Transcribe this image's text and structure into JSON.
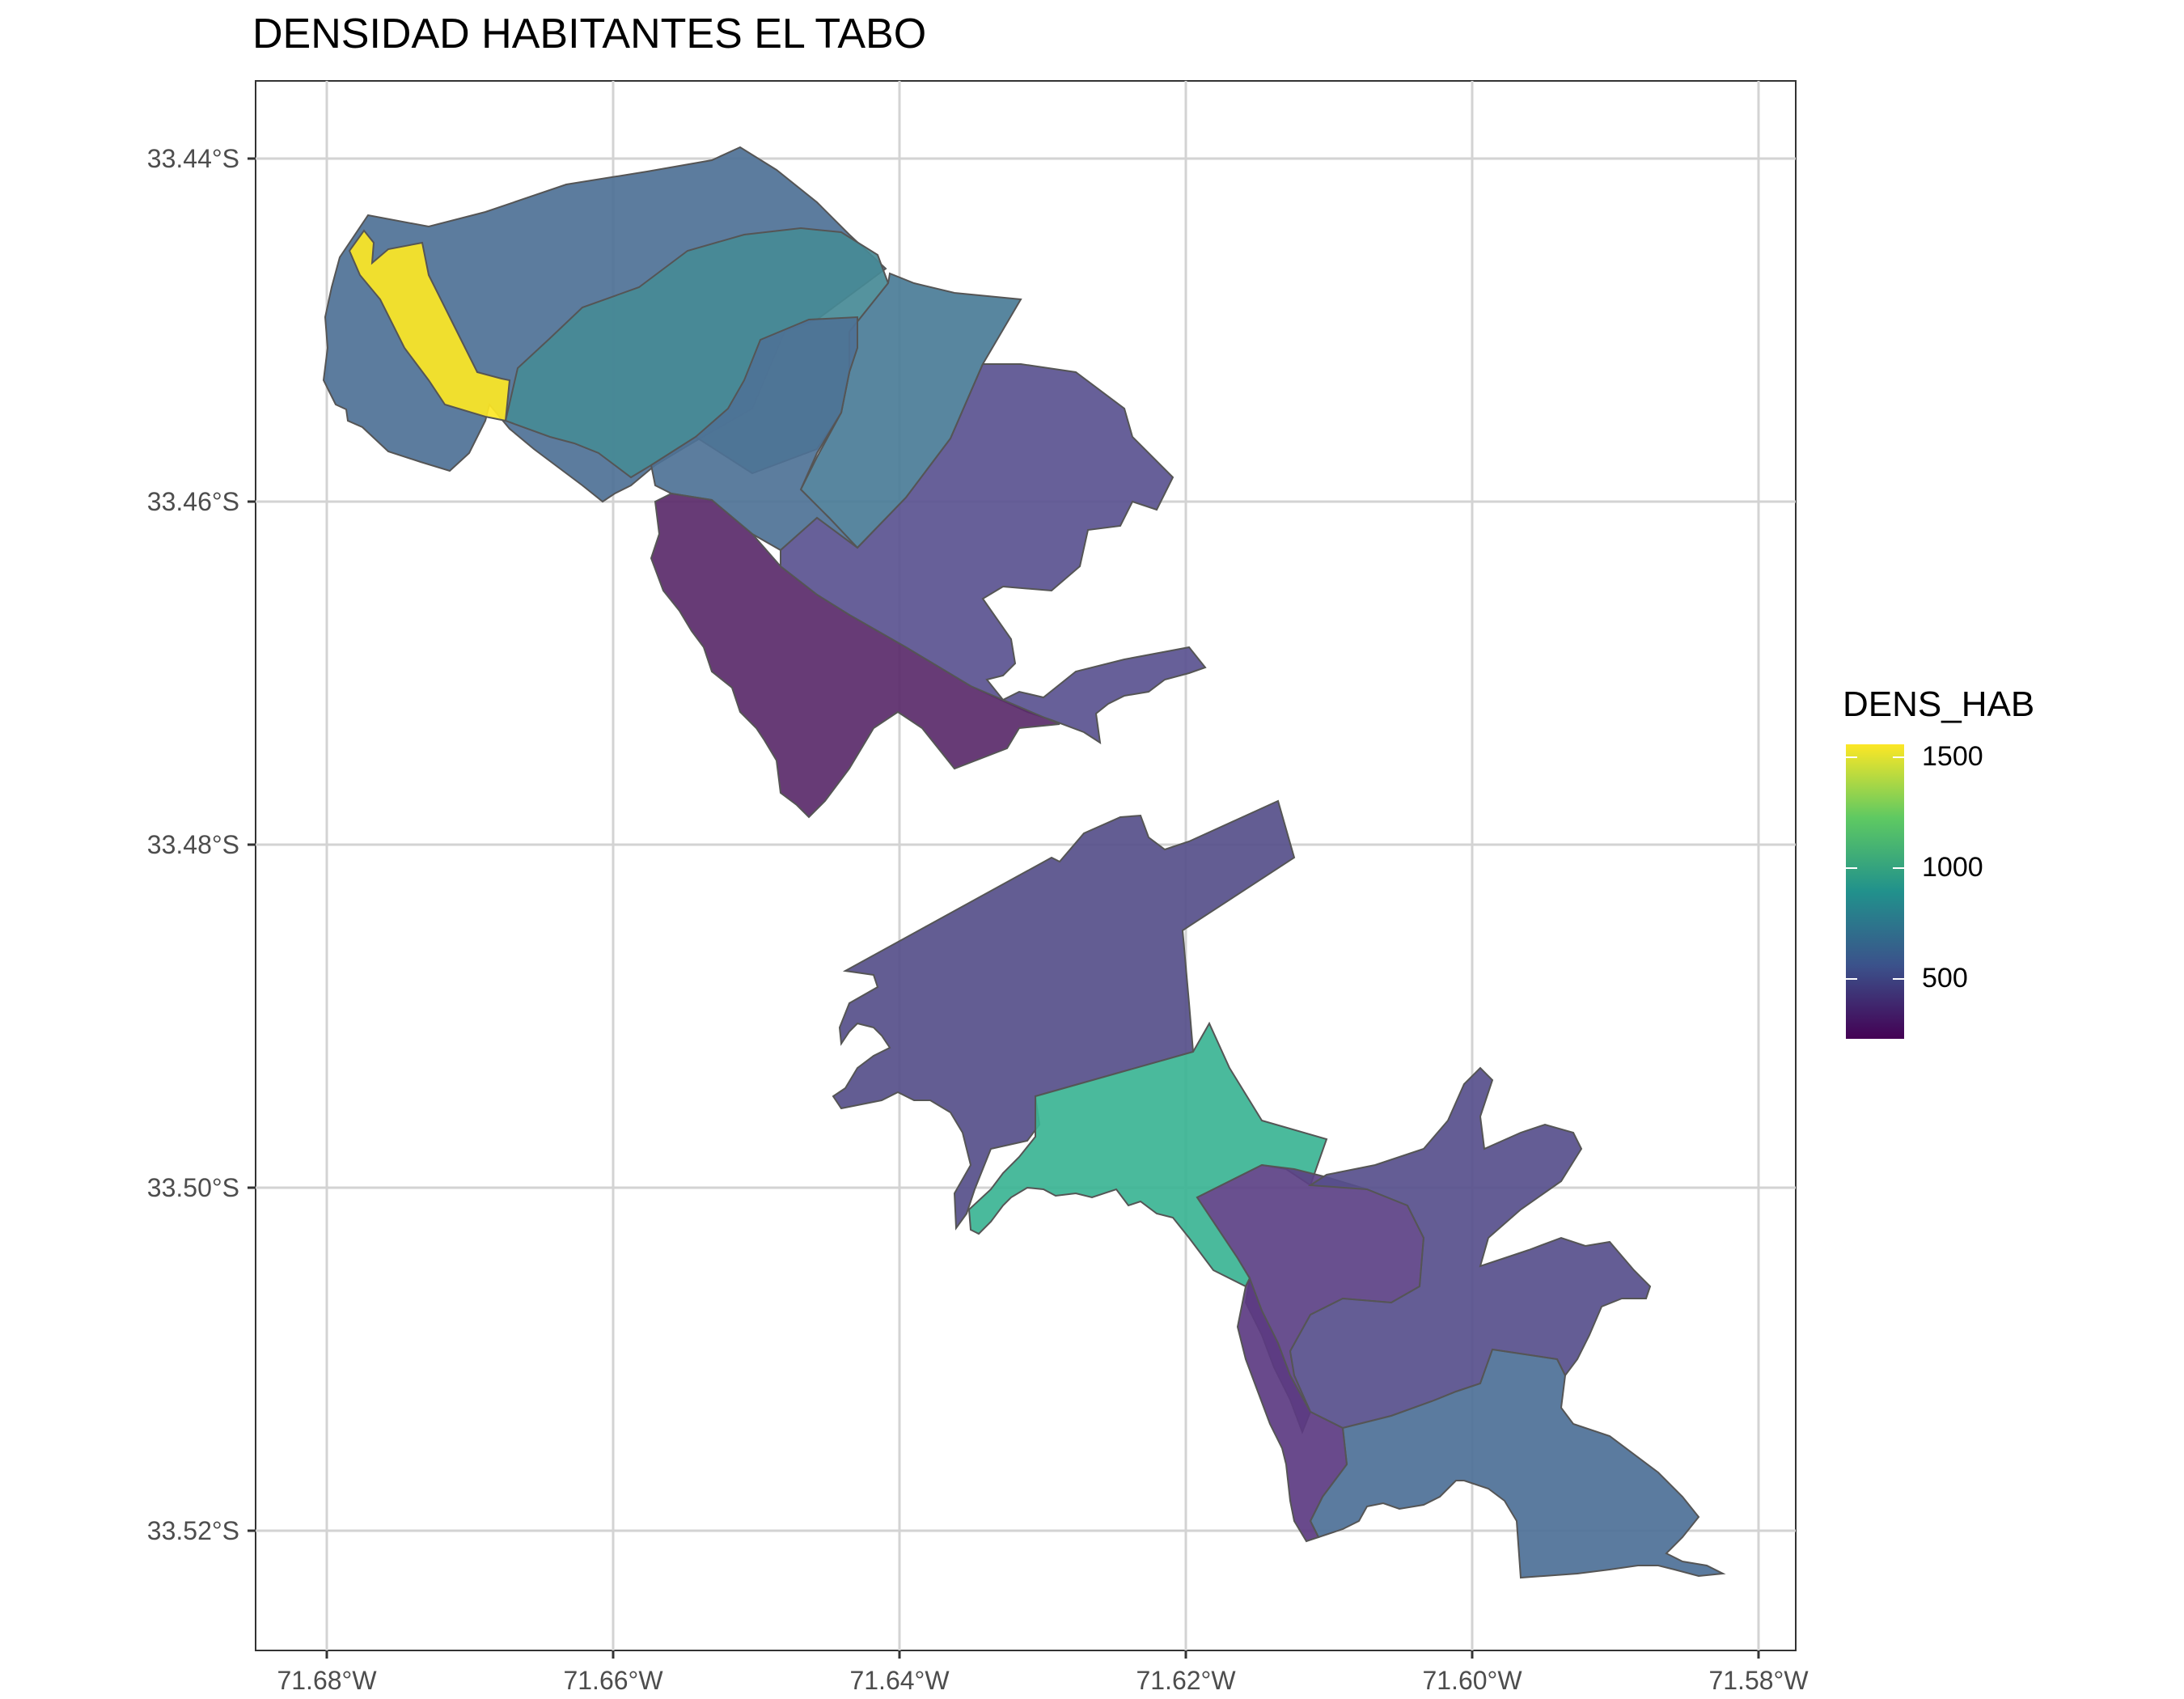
{
  "title": "DENSIDAD HABITANTES EL TABO",
  "axes": {
    "x_ticks": [
      "71.68°W",
      "71.66°W",
      "71.64°W",
      "71.62°W",
      "71.60°W",
      "71.58°W"
    ],
    "y_ticks": [
      "33.44°S",
      "33.46°S",
      "33.48°S",
      "33.50°S",
      "33.52°S"
    ]
  },
  "legend": {
    "title": "DENS_HAB",
    "labels": [
      "1500",
      "1000",
      "500"
    ],
    "gradient_colors": [
      "#fde725",
      "#5ec962",
      "#21918c",
      "#3b528b",
      "#440154"
    ]
  },
  "zones": [
    {
      "id": "north-coastal",
      "color": "#4e7196"
    },
    {
      "id": "north-center",
      "color": "#468a96"
    },
    {
      "id": "north-center-east",
      "color": "#4a7c97"
    },
    {
      "id": "north-inner",
      "color": "#4e7296"
    },
    {
      "id": "north-yellow",
      "color": "#fde725"
    },
    {
      "id": "north-east",
      "color": "#5a5390"
    },
    {
      "id": "north-south-dark",
      "color": "#5a2a6a"
    },
    {
      "id": "south-big",
      "color": "#564f8a"
    },
    {
      "id": "south-green",
      "color": "#3bb494"
    },
    {
      "id": "south-mid-dark",
      "color": "#5c4186"
    },
    {
      "id": "south-east",
      "color": "#574f8c"
    },
    {
      "id": "south-tip",
      "color": "#4d7097"
    },
    {
      "id": "south-coastal-sliver",
      "color": "#5c3b82"
    }
  ]
}
